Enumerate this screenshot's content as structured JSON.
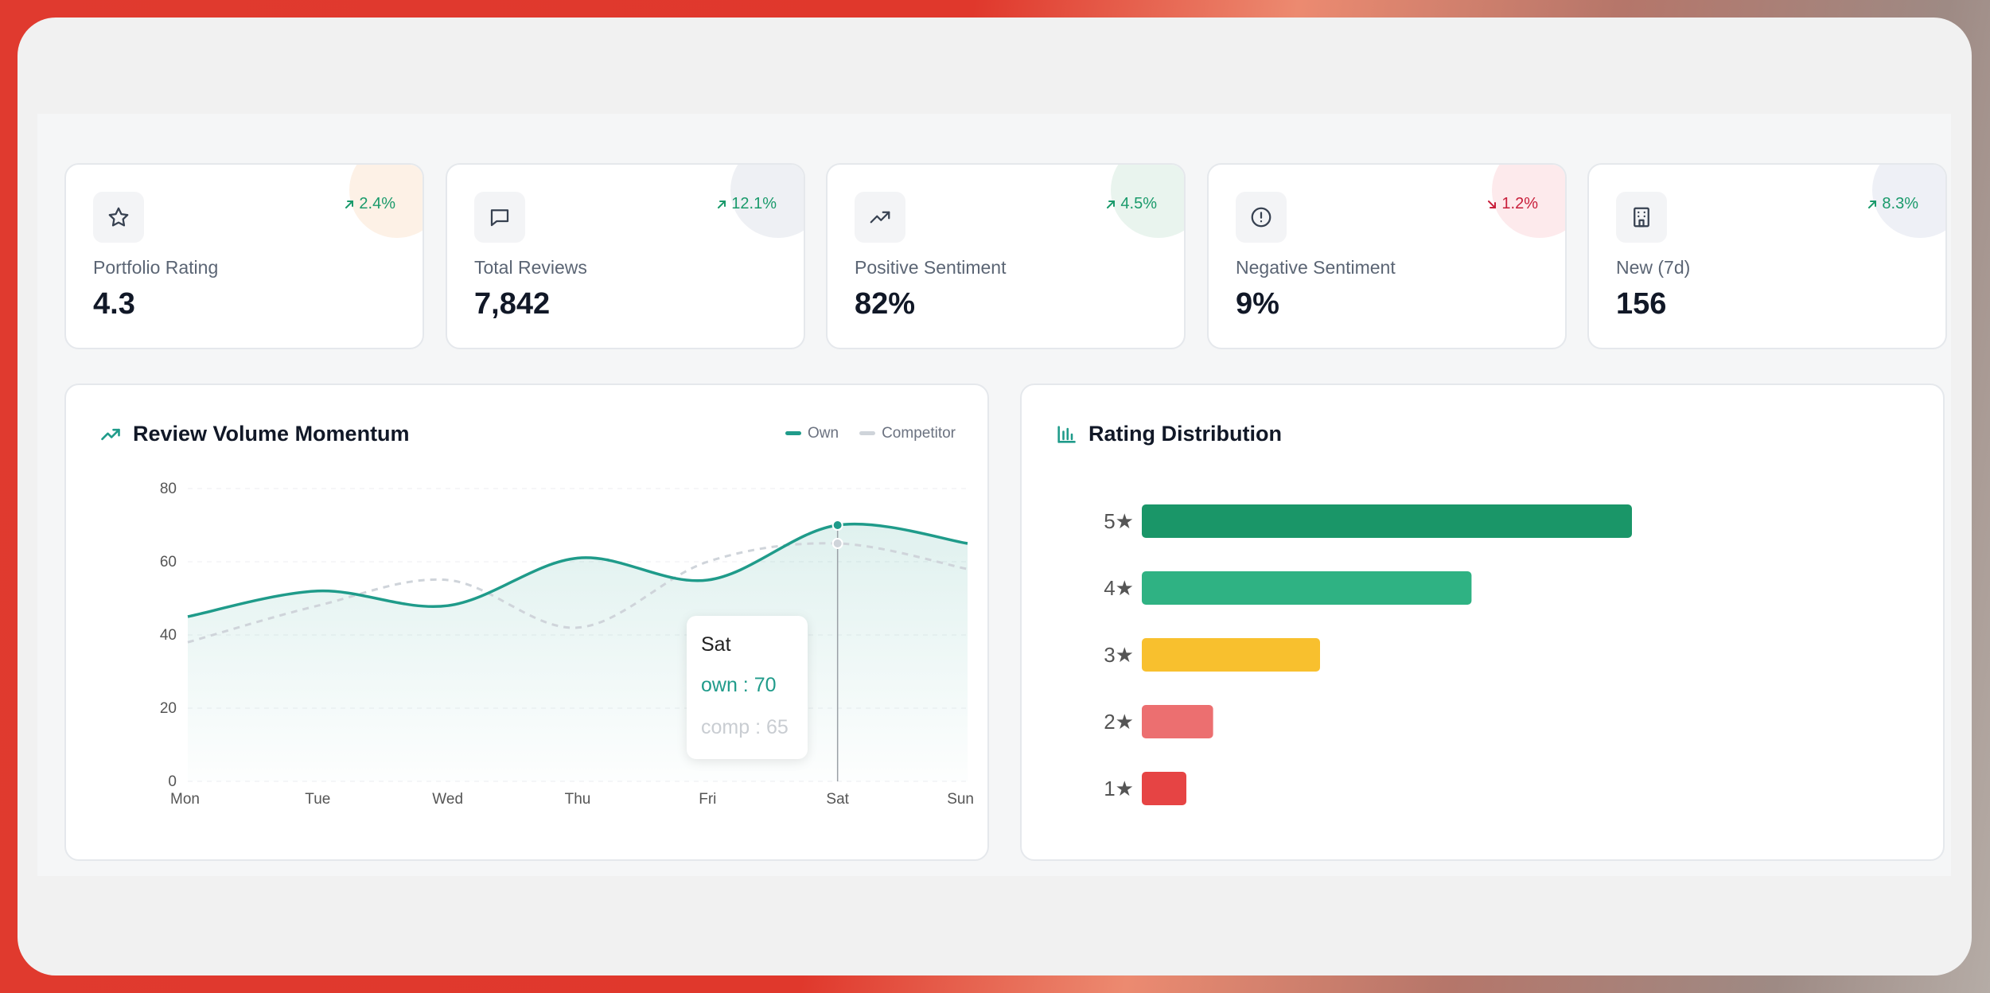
{
  "stats": [
    {
      "label": "Portfolio Rating",
      "value": "4.3",
      "trend": "2.4%",
      "direction": "up",
      "icon": "star-icon",
      "blob": "#fdf1e6"
    },
    {
      "label": "Total Reviews",
      "value": "7,842",
      "trend": "12.1%",
      "direction": "up",
      "icon": "message-icon",
      "blob": "#eef0f4"
    },
    {
      "label": "Positive Sentiment",
      "value": "82%",
      "trend": "4.5%",
      "direction": "up",
      "icon": "trending-up-icon",
      "blob": "#e9f4ee"
    },
    {
      "label": "Negative Sentiment",
      "value": "9%",
      "trend": "1.2%",
      "direction": "down",
      "icon": "alert-circle-icon",
      "blob": "#fdeaec"
    },
    {
      "label": "New (7d)",
      "value": "156",
      "trend": "8.3%",
      "direction": "up",
      "icon": "building-icon",
      "blob": "#eef0f6"
    }
  ],
  "line_title": "Review Volume Momentum",
  "bar_title": "Rating Distribution",
  "legend": {
    "own": "Own",
    "competitor": "Competitor"
  },
  "tooltip": {
    "day": "Sat",
    "own": "own : 70",
    "comp": "comp : 65"
  },
  "colors": {
    "own": "#1f9b8a",
    "competitor": "#cfd4da",
    "up": "#1a9a6b",
    "down": "#c81e3a"
  },
  "chart_data": [
    {
      "type": "line",
      "title": "Review Volume Momentum",
      "categories": [
        "Mon",
        "Tue",
        "Wed",
        "Thu",
        "Fri",
        "Sat",
        "Sun"
      ],
      "series": [
        {
          "name": "Own",
          "values": [
            45,
            52,
            48,
            61,
            55,
            70,
            65
          ]
        },
        {
          "name": "Competitor",
          "values": [
            38,
            48,
            55,
            42,
            60,
            65,
            58
          ]
        }
      ],
      "ylim": [
        0,
        80
      ],
      "yticks": [
        0,
        20,
        40,
        60,
        80
      ]
    },
    {
      "type": "bar",
      "title": "Rating Distribution",
      "categories": [
        "5★",
        "4★",
        "3★",
        "2★",
        "1★"
      ],
      "values": [
        55,
        37,
        20,
        8,
        5
      ],
      "colors": [
        "#1a9668",
        "#2fb283",
        "#f8c02e",
        "#ec6f70",
        "#e64444"
      ],
      "xlim": [
        0,
        100
      ]
    }
  ]
}
